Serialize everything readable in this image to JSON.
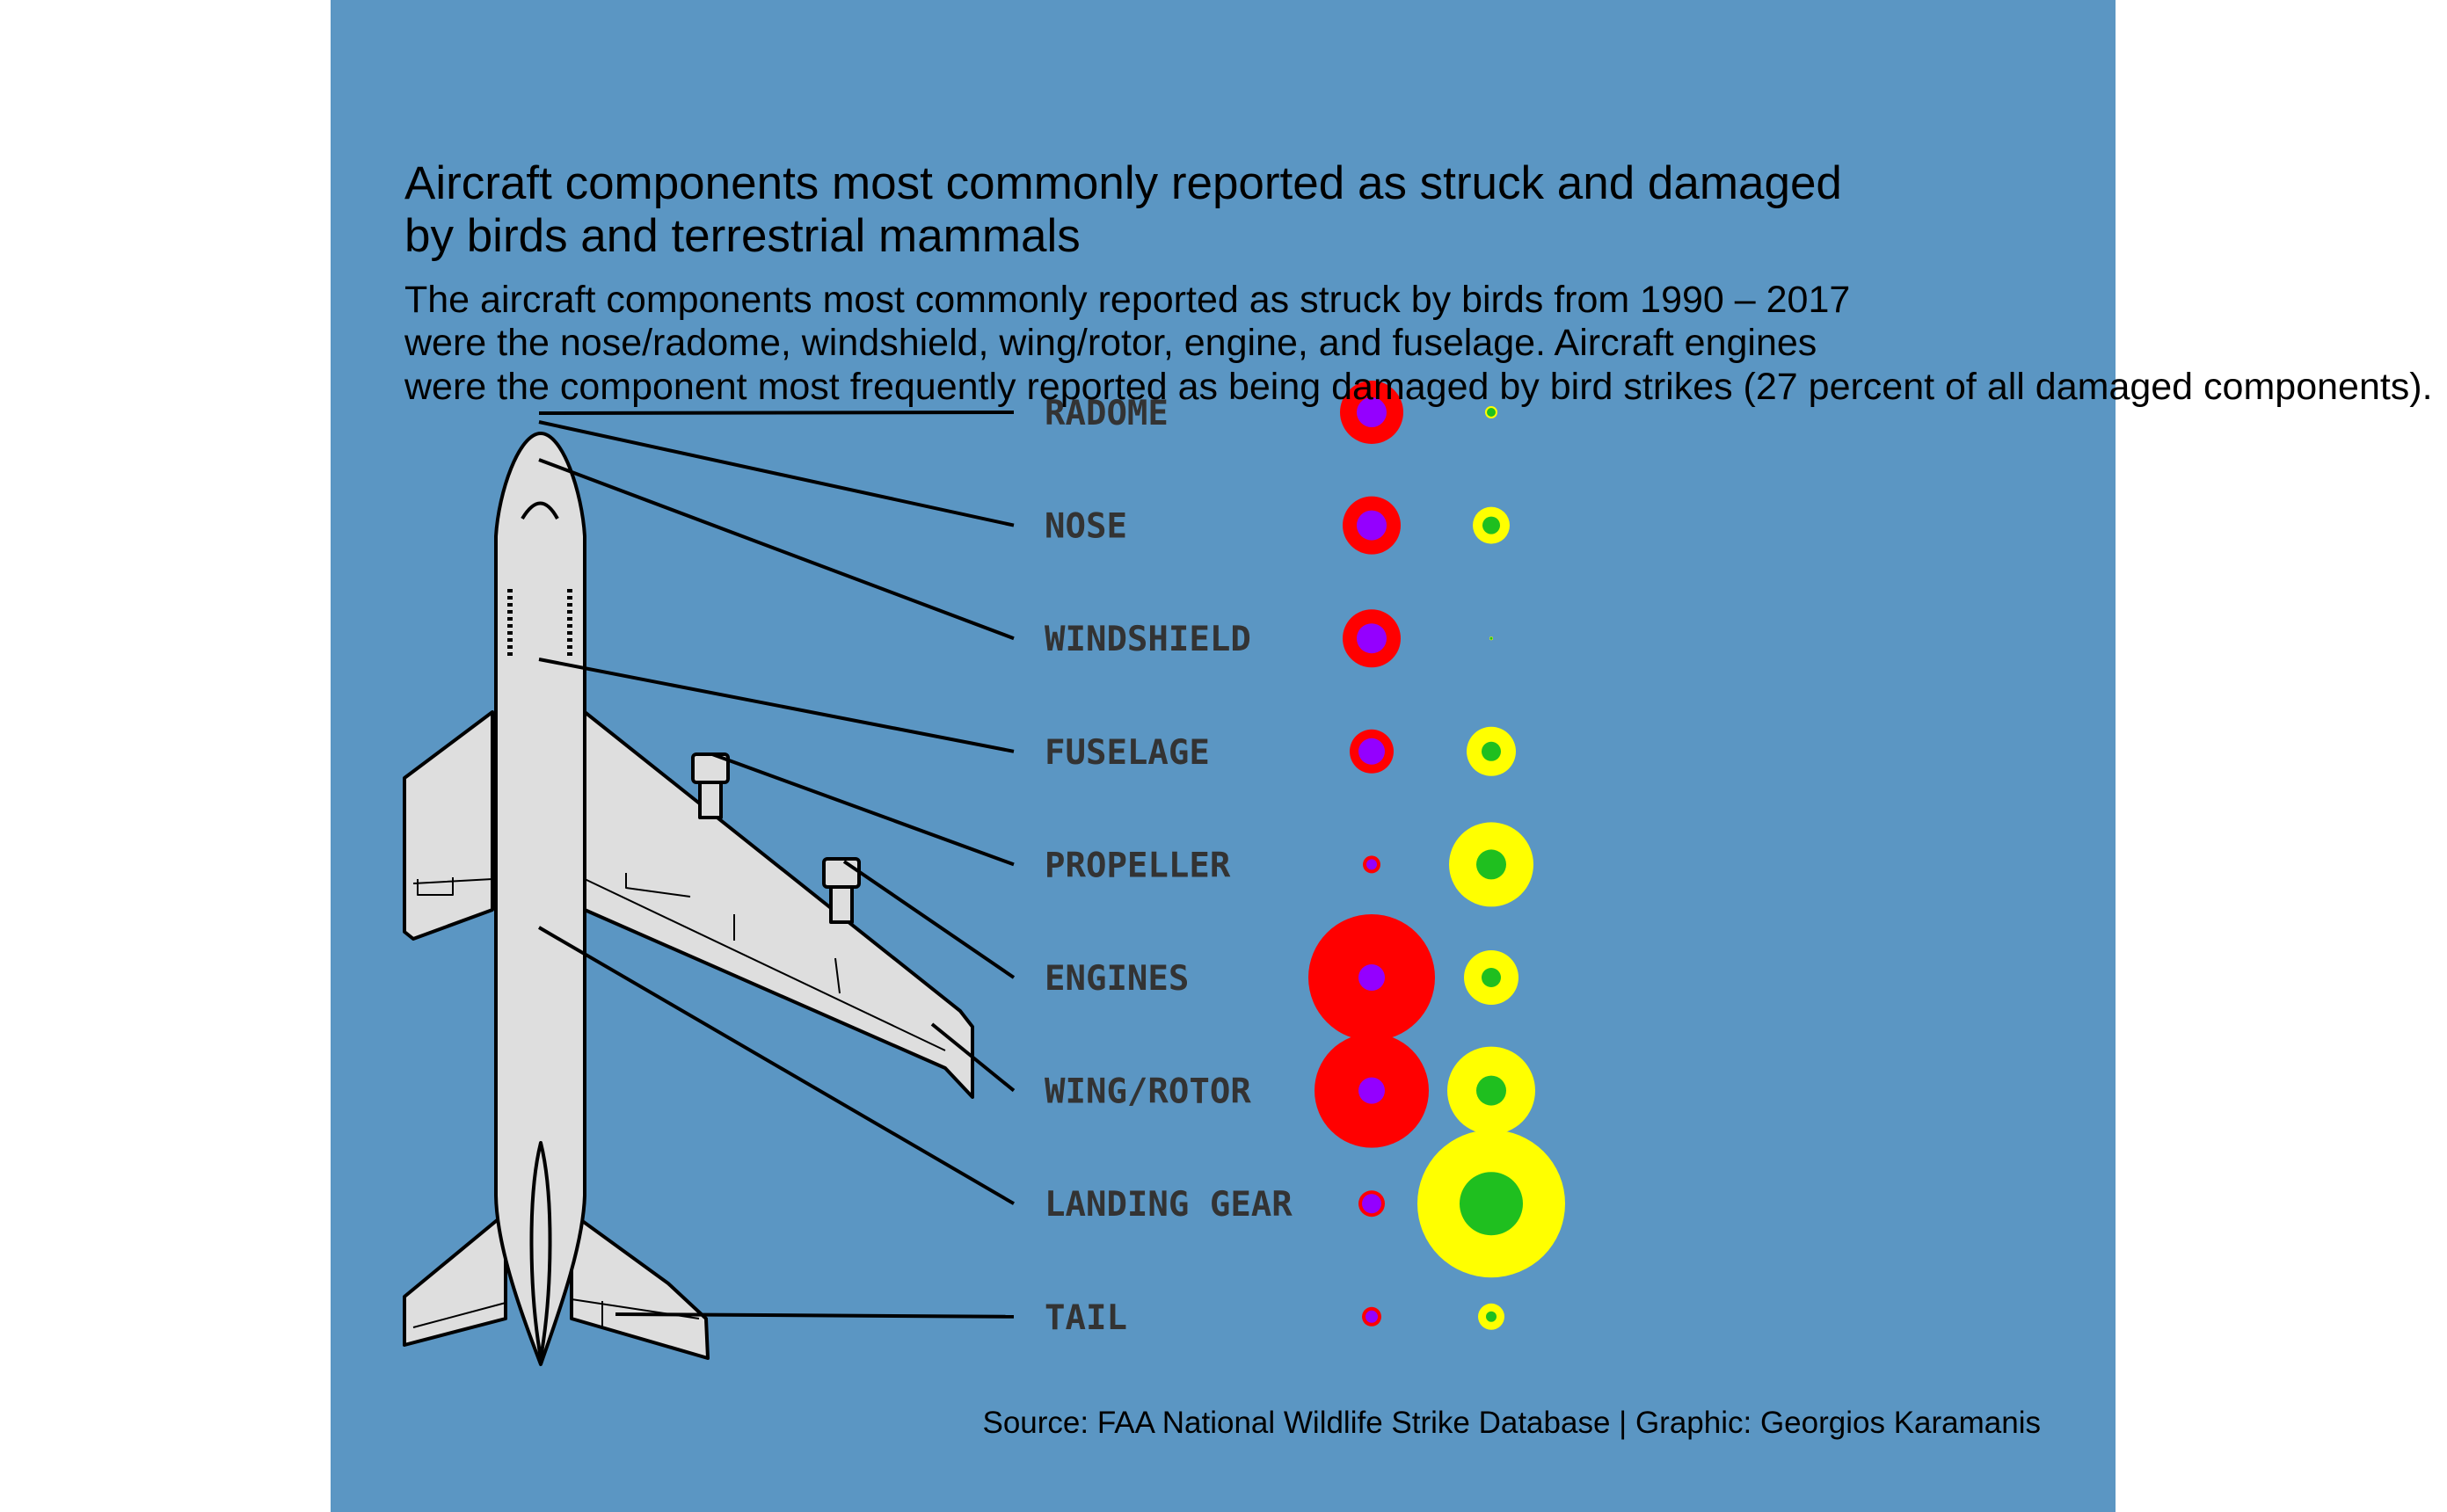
{
  "colors": {
    "page_background": "#ffffff",
    "panel_background": "#5b96c3",
    "struck_outer": "#ff0000",
    "struck_inner": "#9400ff",
    "damaged_outer": "#ffff00",
    "damaged_inner": "#1fbf1f",
    "leader_line": "#000000",
    "label": "#333333",
    "plane_fill": "#dedede",
    "plane_stroke": "#000000"
  },
  "icons": {
    "plane": "airplane-top-view-icon"
  },
  "chart_data": {
    "type": "bubble",
    "title": [
      "Aircraft components most commonly reported as struck and damaged",
      "by birds and terrestrial mammals"
    ],
    "subtitle": [
      "The aircraft components most commonly reported as struck by birds from 1990 – 2017",
      "were the nose/radome, windshield, wing/rotor, engine, and fuselage. Aircraft engines",
      "were the component most frequently reported as being damaged by bird strikes (27 percent of all damaged components)."
    ],
    "caption": "Source: FAA National Wildlife Strike Database | Graphic: Georgios Karamanis",
    "categories": [
      "RADOME",
      "NOSE",
      "WINDSHIELD",
      "FUSELAGE",
      "PROPELLER",
      "ENGINES",
      "WING/ROTOR",
      "LANDING GEAR",
      "TAIL"
    ],
    "series": [
      {
        "group": "struck",
        "part": "outer",
        "values": [
          36,
          33,
          33,
          25,
          10,
          72,
          65,
          15,
          11
        ]
      },
      {
        "group": "struck",
        "part": "inner",
        "values": [
          17,
          17,
          17,
          15,
          6,
          15,
          15,
          11,
          7
        ]
      },
      {
        "group": "damaged",
        "part": "outer",
        "values": [
          7,
          21,
          2,
          28,
          48,
          31,
          50,
          84,
          15
        ]
      },
      {
        "group": "damaged",
        "part": "inner",
        "values": [
          5,
          10,
          1.5,
          11,
          17,
          11,
          17,
          36,
          6
        ]
      }
    ]
  }
}
